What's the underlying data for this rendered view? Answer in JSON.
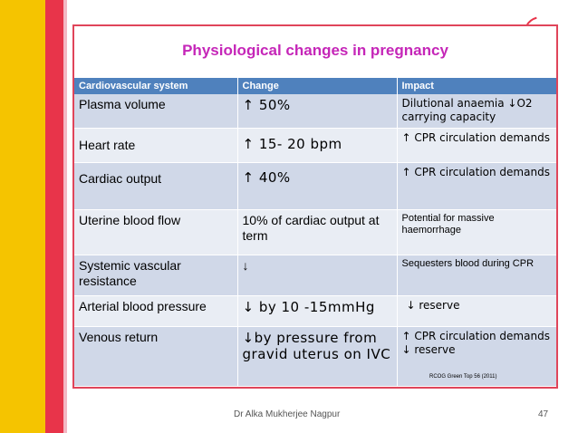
{
  "title": "Physiological changes in pregnancy",
  "table": {
    "headers": [
      "Cardiovascular system",
      "Change",
      "Impact"
    ],
    "rows": [
      {
        "system": "Plasma volume",
        "change": "↑ 50%",
        "impact": "Dilutional anaemia ↓O2 carrying capacity"
      },
      {
        "system": "Heart rate",
        "change": "↑ 15- 20 bpm",
        "impact": "↑ CPR circulation demands"
      },
      {
        "system": "Cardiac output",
        "change": "↑ 40%",
        "impact": "↑ CPR circulation demands"
      },
      {
        "system": "Uterine blood flow",
        "change": "10% of cardiac output at term",
        "impact": "Potential for massive haemorrhage"
      },
      {
        "system": "Systemic vascular resistance",
        "change": "↓",
        "impact": "Sequesters blood during CPR"
      },
      {
        "system": "Arterial blood pressure",
        "change": "↓ by 10 -15mmHg",
        "impact": "↓ reserve"
      },
      {
        "system": "Venous return",
        "change": "↓by pressure from gravid uterus on IVC",
        "impact_line1": "↑  CPR circulation demands",
        "impact_line2": "↓ reserve"
      }
    ]
  },
  "reference": "RCOG Green Top 56 (2011)",
  "footer": {
    "author": "Dr Alka Mukherjee Nagpur",
    "page": "47"
  },
  "colors": {
    "title": "#c526b8",
    "header_bg": "#4f81bd",
    "row_dark": "#d0d8e8",
    "row_light": "#e9edf4",
    "frame": "#e0455a"
  }
}
